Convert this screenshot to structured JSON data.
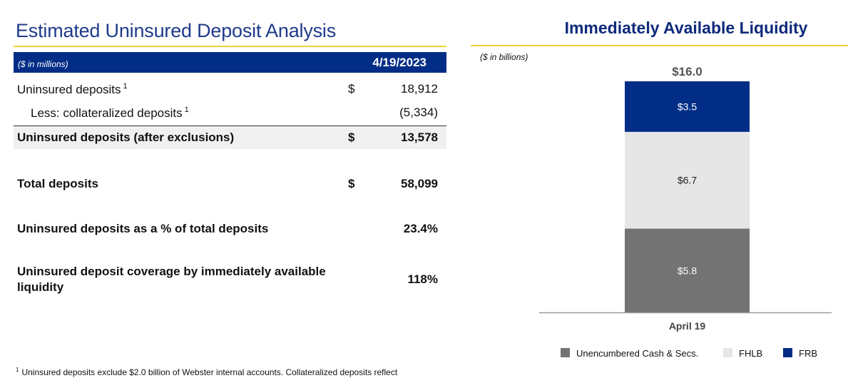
{
  "left": {
    "title": "Estimated Uninsured Deposit Analysis",
    "unit_note": "($ in millions)",
    "date": "4/19/2023",
    "rows": {
      "uninsured": {
        "label": "Uninsured deposits",
        "sup": "1",
        "currency": "$",
        "value": "18,912"
      },
      "collateralized": {
        "label": "Less: collateralized deposits",
        "sup": "1",
        "value": "(5,334)"
      },
      "after_exclusions": {
        "label": "Uninsured deposits (after exclusions)",
        "currency": "$",
        "value": "13,578"
      },
      "total": {
        "label": "Total deposits",
        "currency": "$",
        "value": "58,099"
      },
      "pct": {
        "label": "Uninsured deposits as a % of total deposits",
        "value": "23.4%"
      },
      "coverage": {
        "label": "Uninsured deposit coverage by immediately available liquidity",
        "value": "118%"
      }
    },
    "footnote": {
      "sup": "1",
      "text": "Uninsured deposits exclude $2.0 billion of Webster internal accounts. Collateralized deposits reflect"
    }
  },
  "chart_data": {
    "type": "bar",
    "stacked": true,
    "title": "Immediately Available Liquidity",
    "unit_note": "($ in billions)",
    "categories": [
      "April 19"
    ],
    "total_label": "$16.0",
    "ylim": [
      0,
      16
    ],
    "series": [
      {
        "name": "Unencumbered Cash & Secs.",
        "values": [
          5.8
        ],
        "label": "$5.8",
        "color": "#737373",
        "label_color": "#ffffff"
      },
      {
        "name": "FHLB",
        "values": [
          6.7
        ],
        "label": "$6.7",
        "color": "#e6e6e6",
        "label_color": "#222222"
      },
      {
        "name": "FRB",
        "values": [
          3.5
        ],
        "label": "$3.5",
        "color": "#022d86",
        "label_color": "#ffffff"
      }
    ],
    "legend_position": "bottom",
    "grid": false
  }
}
